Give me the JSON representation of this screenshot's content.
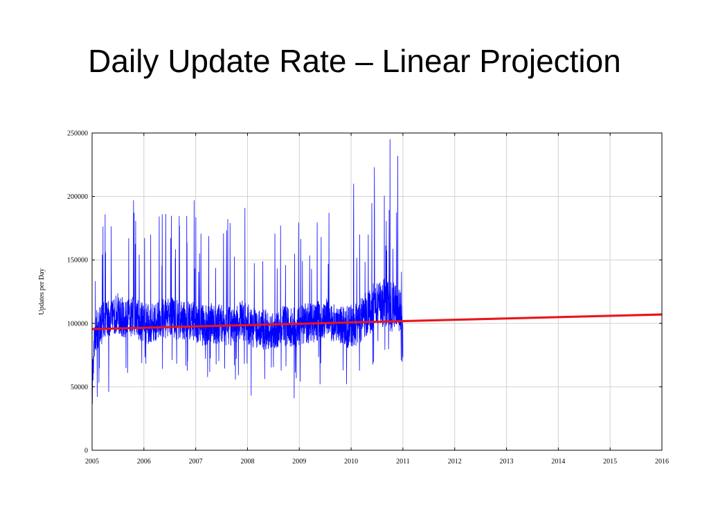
{
  "slide": {
    "title": "Daily Update Rate – Linear Projection"
  },
  "chart_data": {
    "type": "line",
    "title": "",
    "xlabel": "",
    "ylabel": "Updates per Day",
    "xlim": [
      2005,
      2016
    ],
    "ylim": [
      0,
      250000
    ],
    "x_ticks": [
      "2005",
      "2006",
      "2007",
      "2008",
      "2009",
      "2010",
      "2011",
      "2012",
      "2013",
      "2014",
      "2015",
      "2016"
    ],
    "y_ticks": [
      "0",
      "50000",
      "100000",
      "150000",
      "200000",
      "250000"
    ],
    "grid": true,
    "legend": "none",
    "series": [
      {
        "color": "#0000ff",
        "style": "noisy daily series",
        "x_range": [
          2005,
          2011
        ],
        "x": [
          2005.0,
          2005.05,
          2005.15,
          2005.25,
          2005.35,
          2005.5,
          2005.65,
          2005.8,
          2005.95,
          2006.1,
          2006.3,
          2006.5,
          2006.7,
          2006.85,
          2007.0,
          2007.15,
          2007.3,
          2007.5,
          2007.7,
          2007.9,
          2008.1,
          2008.3,
          2008.5,
          2008.7,
          2008.9,
          2009.1,
          2009.3,
          2009.5,
          2009.7,
          2009.9,
          2010.05,
          2010.2,
          2010.35,
          2010.5,
          2010.65,
          2010.8,
          2010.95,
          2011.0
        ],
        "y": [
          55000,
          92000,
          98000,
          102000,
          104000,
          108000,
          103000,
          107000,
          101000,
          99000,
          103000,
          105000,
          102000,
          104000,
          101000,
          98000,
          100000,
          99000,
          97000,
          102000,
          97000,
          95000,
          96000,
          98000,
          97000,
          100000,
          101000,
          104000,
          100000,
          97000,
          98000,
          103000,
          110000,
          115000,
          118000,
          112000,
          105000,
          92000
        ],
        "peaks": [
          {
            "x": 2005.8,
            "y": 197000
          },
          {
            "x": 2006.97,
            "y": 197000
          },
          {
            "x": 2007.95,
            "y": 191000
          },
          {
            "x": 2010.05,
            "y": 210000
          },
          {
            "x": 2010.45,
            "y": 223000
          },
          {
            "x": 2010.75,
            "y": 245000
          },
          {
            "x": 2010.9,
            "y": 232000
          }
        ],
        "troughs": [
          {
            "x": 2005.1,
            "y": 42000
          },
          {
            "x": 2005.32,
            "y": 46000
          },
          {
            "x": 2008.07,
            "y": 43000
          },
          {
            "x": 2008.9,
            "y": 41000
          },
          {
            "x": 2009.4,
            "y": 52000
          }
        ]
      },
      {
        "color": "#e8161b",
        "style": "linear projection",
        "x": [
          2005,
          2016
        ],
        "y": [
          95500,
          107000
        ]
      }
    ]
  }
}
